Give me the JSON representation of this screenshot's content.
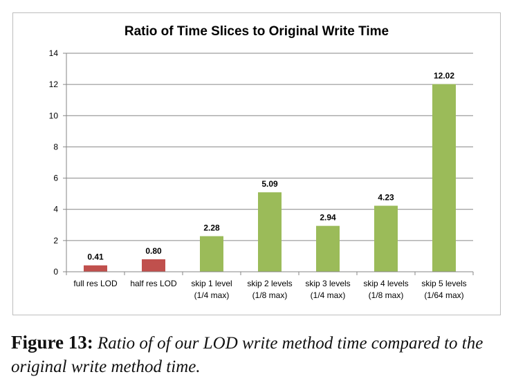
{
  "chart_data": {
    "type": "bar",
    "title": "Ratio of Time Slices to Original Write Time",
    "xlabel": "",
    "ylabel": "",
    "ylim": [
      0,
      14
    ],
    "yticks": [
      "0",
      "2",
      "4",
      "6",
      "8",
      "10",
      "12",
      "14"
    ],
    "grid": true,
    "categories": [
      [
        "full res LOD"
      ],
      [
        "half res LOD"
      ],
      [
        "skip 1 level",
        "(1/4 max)"
      ],
      [
        "skip 2 levels",
        "(1/8 max)"
      ],
      [
        "skip 3 levels",
        "(1/4 max)"
      ],
      [
        "skip 4 levels",
        "(1/8 max)"
      ],
      [
        "skip 5 levels",
        "(1/64 max)"
      ]
    ],
    "values": [
      0.41,
      0.8,
      2.28,
      5.09,
      2.94,
      4.23,
      12.02
    ],
    "value_labels": [
      "0.41",
      "0.80",
      "2.28",
      "5.09",
      "2.94",
      "4.23",
      "12.02"
    ],
    "colors": [
      "#c0504d",
      "#c0504d",
      "#9bbb59",
      "#9bbb59",
      "#9bbb59",
      "#9bbb59",
      "#9bbb59"
    ],
    "axis_color": "#868686",
    "grid_color": "#868686"
  },
  "caption": {
    "label": "Figure 13:",
    "text": "Ratio of of our LOD write method time compared to the original write method time."
  }
}
